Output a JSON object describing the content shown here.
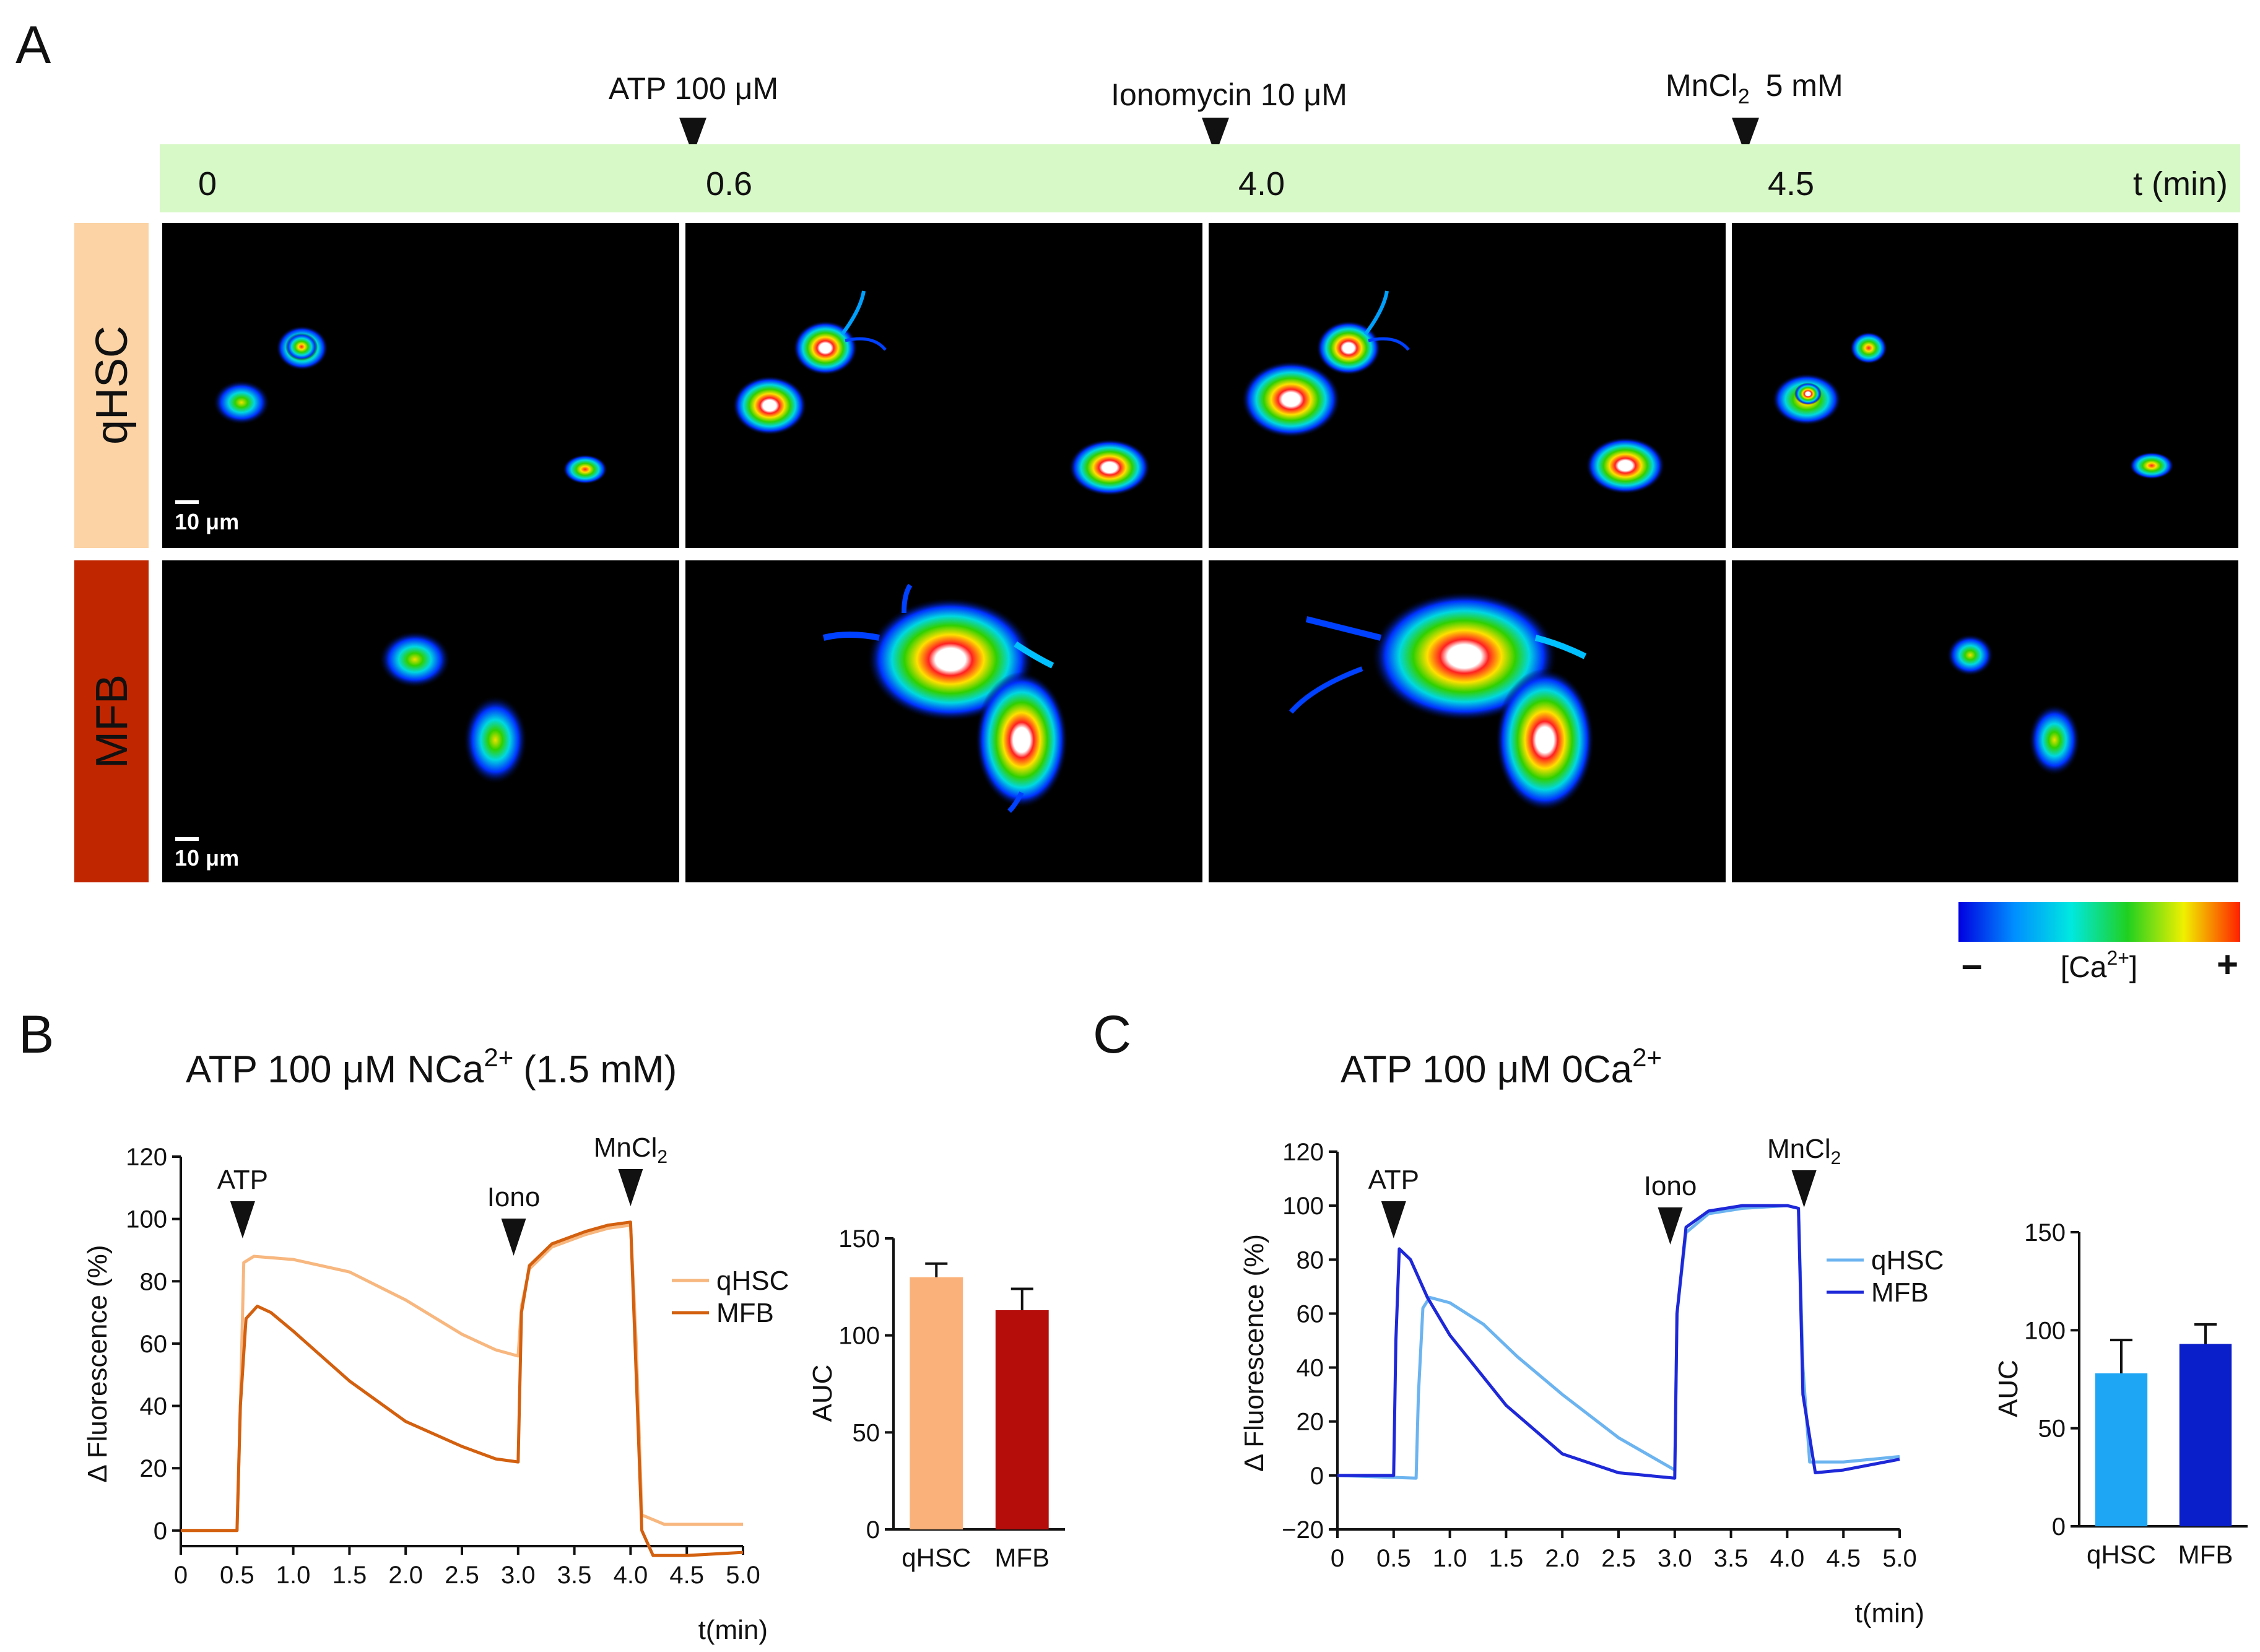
{
  "panelA": {
    "letter": "A",
    "treatments": [
      {
        "name": "ATP 100 μM"
      },
      {
        "name": "Ionomycin 10 μM"
      },
      {
        "name": "MnCl",
        "sub": "2",
        "post": "5 mM"
      }
    ],
    "timeline": {
      "ticks": [
        "0",
        "0.6",
        "4.0",
        "4.5"
      ],
      "unit": "t (min)"
    },
    "rows": [
      {
        "label": "qHSC",
        "scalebar": "10 μm"
      },
      {
        "label": "MFB",
        "scalebar": "10 μm"
      }
    ],
    "colorbar": {
      "minus": "–",
      "label": "[Ca",
      "sup": "2+",
      "close": "]",
      "plus": "+"
    }
  },
  "panelB": {
    "letter": "B",
    "title": {
      "pre": "ATP 100 μM NCa",
      "sup": "2+",
      "post": "(1.5 mM)"
    },
    "markers": {
      "atp": "ATP",
      "iono": "Iono",
      "mn": "MnCl",
      "mn_sub": "2"
    }
  },
  "panelC": {
    "letter": "C",
    "title": {
      "pre": "ATP 100 μM 0Ca",
      "sup": "2+"
    },
    "markers": {
      "atp": "ATP",
      "iono": "Iono",
      "mn": "MnCl",
      "mn_sub": "2"
    }
  },
  "colors": {
    "qhsc_b": "#F7B77F",
    "mfb_b": "#D3600F",
    "qhsc_b_bar": "#FBB27A",
    "mfb_b_bar": "#B40D0A",
    "qhsc_c": "#6CB4F0",
    "mfb_c": "#1E28D8",
    "qhsc_c_bar": "#1EA6F5",
    "mfb_c_bar": "#0A1FC9",
    "timeline_bg": "#D7F8C7",
    "qhsc_label_bg": "#FBD3A5",
    "mfb_label_bg": "#C02600"
  },
  "chart_data": [
    {
      "type": "line",
      "title": "ATP 100 μM NCa2+ (1.5 mM)",
      "xlabel": "t(min)",
      "ylabel": "Δ Fluorescence (%)",
      "xlim": [
        0,
        5.0
      ],
      "ylim": [
        -5,
        120
      ],
      "xticks": [
        "0",
        "0.5",
        "1.0",
        "1.5",
        "2.0",
        "2.5",
        "3.0",
        "3.5",
        "4.0",
        "4.5",
        "5.0"
      ],
      "yticks": [
        "0",
        "20",
        "40",
        "60",
        "80",
        "100",
        "120"
      ],
      "series": [
        {
          "name": "qHSC",
          "x": [
            0,
            0.5,
            0.53,
            0.56,
            0.65,
            1.0,
            1.5,
            2.0,
            2.5,
            2.8,
            3.0,
            3.03,
            3.1,
            3.3,
            3.6,
            3.8,
            4.0,
            4.05,
            4.1,
            4.3,
            4.6,
            5.0
          ],
          "y": [
            0,
            0,
            40,
            86,
            88,
            87,
            83,
            74,
            63,
            58,
            56,
            72,
            84,
            91,
            95,
            97,
            98,
            60,
            5,
            2,
            2,
            2
          ]
        },
        {
          "name": "MFB",
          "x": [
            0,
            0.5,
            0.53,
            0.58,
            0.68,
            0.8,
            1.0,
            1.5,
            2.0,
            2.5,
            2.8,
            3.0,
            3.03,
            3.1,
            3.3,
            3.6,
            3.8,
            4.0,
            4.05,
            4.1,
            4.2,
            4.5,
            5.0
          ],
          "y": [
            0,
            0,
            40,
            68,
            72,
            70,
            64,
            48,
            35,
            27,
            23,
            22,
            70,
            85,
            92,
            96,
            98,
            99,
            50,
            0,
            -8,
            -8,
            -7
          ]
        }
      ],
      "markers": [
        {
          "label": "ATP",
          "x": 0.55
        },
        {
          "label": "Iono",
          "x": 2.96
        },
        {
          "label": "MnCl2",
          "x": 4.0
        }
      ]
    },
    {
      "type": "bar",
      "ylabel": "AUC",
      "ylim": [
        0,
        150
      ],
      "yticks": [
        "0",
        "50",
        "100",
        "150"
      ],
      "categories": [
        "qHSC",
        "MFB"
      ],
      "values": [
        130,
        113
      ],
      "errors": [
        7,
        11
      ]
    },
    {
      "type": "line",
      "title": "ATP 100 μM 0Ca2+",
      "xlabel": "t(min)",
      "ylabel": "Δ Fluorescence (%)",
      "xlim": [
        0,
        5.0
      ],
      "ylim": [
        -20,
        120
      ],
      "xticks": [
        "0",
        "0.5",
        "1.0",
        "1.5",
        "2.0",
        "2.5",
        "3.0",
        "3.5",
        "4.0",
        "4.5",
        "5.0"
      ],
      "yticks": [
        "−20",
        "0",
        "20",
        "40",
        "60",
        "80",
        "100",
        "120"
      ],
      "series": [
        {
          "name": "qHSC",
          "x": [
            0,
            0.7,
            0.72,
            0.76,
            0.82,
            1.0,
            1.3,
            1.6,
            2.0,
            2.5,
            3.0,
            3.02,
            3.1,
            3.3,
            3.6,
            4.0,
            4.1,
            4.14,
            4.2,
            4.5,
            5.0
          ],
          "y": [
            0,
            -1,
            30,
            62,
            66,
            64,
            56,
            44,
            30,
            14,
            2,
            60,
            90,
            97,
            99,
            100,
            99,
            40,
            5,
            5,
            7
          ]
        },
        {
          "name": "MFB",
          "x": [
            0,
            0.5,
            0.52,
            0.55,
            0.65,
            0.8,
            1.0,
            1.5,
            2.0,
            2.5,
            3.0,
            3.02,
            3.1,
            3.3,
            3.6,
            4.0,
            4.1,
            4.14,
            4.25,
            4.5,
            5.0
          ],
          "y": [
            0,
            0,
            50,
            84,
            80,
            66,
            52,
            26,
            8,
            1,
            -1,
            60,
            92,
            98,
            100,
            100,
            99,
            30,
            1,
            2,
            6
          ]
        }
      ],
      "markers": [
        {
          "label": "ATP",
          "x": 0.5
        },
        {
          "label": "Iono",
          "x": 2.96
        },
        {
          "label": "MnCl2",
          "x": 4.15
        }
      ]
    },
    {
      "type": "bar",
      "ylabel": "AUC",
      "ylim": [
        0,
        150
      ],
      "yticks": [
        "0",
        "50",
        "100",
        "150"
      ],
      "categories": [
        "qHSC",
        "MFB"
      ],
      "values": [
        78,
        93
      ],
      "errors": [
        17,
        10
      ]
    }
  ]
}
